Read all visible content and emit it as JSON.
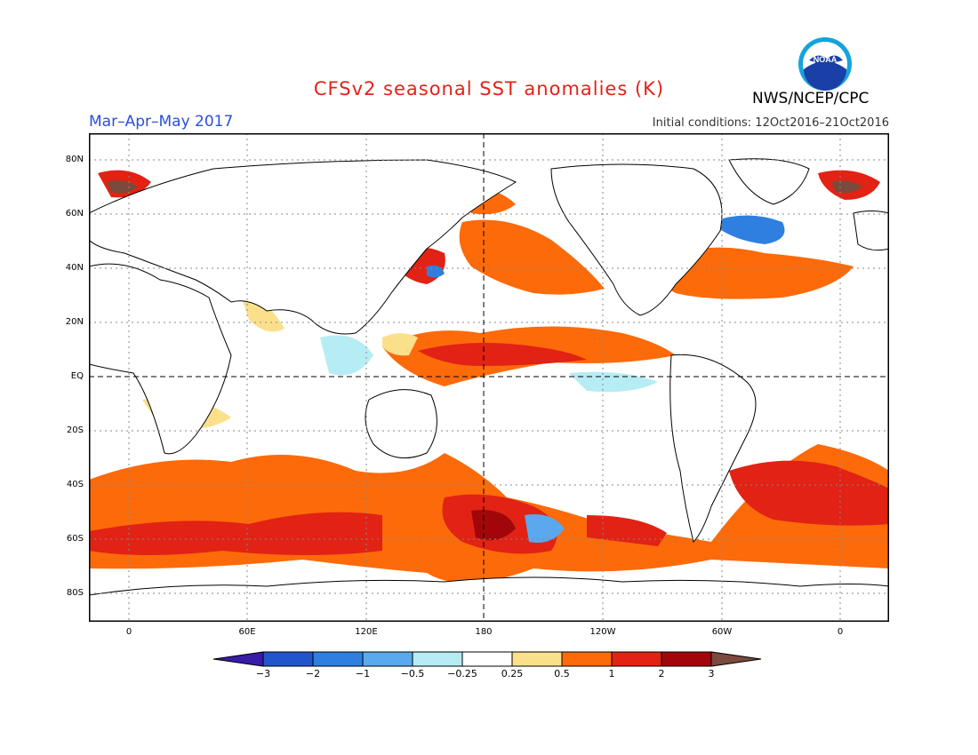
{
  "title": "CFSv2 seasonal SST anomalies (K)",
  "season": "Mar–Apr–May 2017",
  "initial_conditions": "Initial conditions: 12Oct2016–21Oct2016",
  "agency": "NWS/NCEP/CPC",
  "logo_text": "NOAA",
  "lat_labels": [
    "80N",
    "60N",
    "40N",
    "20N",
    "EQ",
    "20S",
    "40S",
    "60S",
    "80S"
  ],
  "lon_labels": [
    "0",
    "60E",
    "120E",
    "180",
    "120W",
    "60W",
    "0"
  ],
  "colorbar": {
    "labels": [
      "−3",
      "−2",
      "−1",
      "−0.5",
      "−0.25",
      "0.25",
      "0.5",
      "1",
      "2",
      "3"
    ],
    "colors": [
      "#3a1aa8",
      "#2255c9",
      "#2f7fe0",
      "#5aa8ee",
      "#b6ecf4",
      "#ffffff",
      "#fbe08c",
      "#fd6a0a",
      "#e12214",
      "#a1070a",
      "#7a4a3c"
    ]
  },
  "map_colors": {
    "land": "#ffffff",
    "coast": "#000000",
    "grid": "#888888"
  }
}
